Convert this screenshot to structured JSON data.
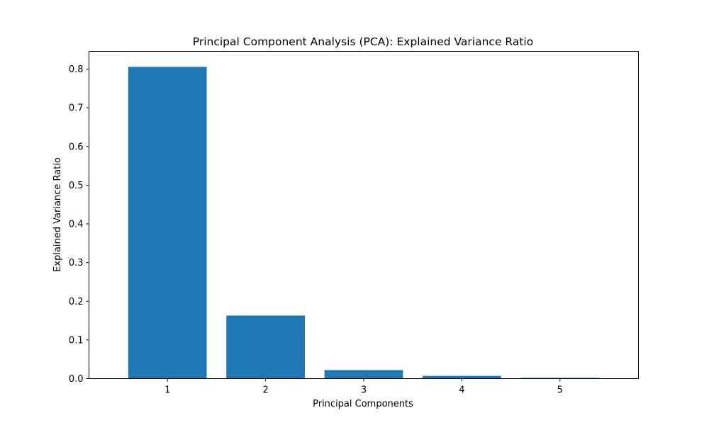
{
  "chart_data": {
    "type": "bar",
    "title": "Principal Component Analysis (PCA): Explained Variance Ratio",
    "xlabel": "Principal Components",
    "ylabel": "Explained Variance Ratio",
    "categories": [
      "1",
      "2",
      "3",
      "4",
      "5"
    ],
    "values": [
      0.806,
      0.163,
      0.022,
      0.007,
      0.002
    ],
    "xlim": [
      0.2,
      5.8
    ],
    "ylim": [
      0,
      0.846
    ],
    "yticks": [
      0.0,
      0.1,
      0.2,
      0.3,
      0.4,
      0.5,
      0.6,
      0.7,
      0.8
    ],
    "ytick_labels": [
      "0.0",
      "0.1",
      "0.2",
      "0.3",
      "0.4",
      "0.5",
      "0.6",
      "0.7",
      "0.8"
    ],
    "bar_color": "#1f77b4",
    "grid": false,
    "legend": "none"
  }
}
